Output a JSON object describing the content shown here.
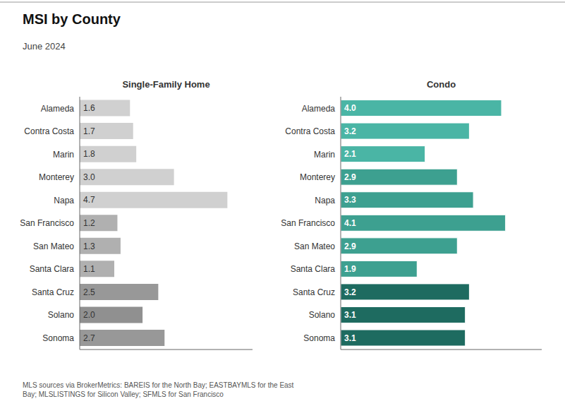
{
  "title": "MSI by County",
  "subtitle": "June 2024",
  "annotations": [
    "MLS sources via BrokerMetrics: BAREIS for the North Bay; EASTBAYMLS for the East\nBay; MLSLISTINGS for Silicon Valley; SFMLS for San Francisco"
  ],
  "chart_data": [
    {
      "type": "bar",
      "title": "Single-Family Home",
      "orientation": "horizontal",
      "categories": [
        "Alameda",
        "Contra Costa",
        "Marin",
        "Monterey",
        "Napa",
        "San Francisco",
        "San Mateo",
        "Santa Clara",
        "Santa Cruz",
        "Solano",
        "Sonoma"
      ],
      "values": [
        1.6,
        1.7,
        1.8,
        3.0,
        4.7,
        1.2,
        1.3,
        1.1,
        2.5,
        2.0,
        2.7
      ],
      "value_labels": [
        "1.6",
        "1.7",
        "1.8",
        "3.0",
        "4.7",
        "1.2",
        "1.3",
        "1.1",
        "2.5",
        "2.0",
        "2.7"
      ],
      "colors": [
        "#d0d0d0",
        "#d0d0d0",
        "#d0d0d0",
        "#d0d0d0",
        "#d0d0d0",
        "#b0b0b0",
        "#b0b0b0",
        "#b0b0b0",
        "#989898",
        "#909090",
        "#989898"
      ],
      "xlim": [
        0,
        5.5
      ],
      "data_labels": true,
      "tick_labels": "y",
      "grid": false
    },
    {
      "type": "bar",
      "title": "Condo",
      "orientation": "horizontal",
      "categories": [
        "Alameda",
        "Contra Costa",
        "Marin",
        "Monterey",
        "Napa",
        "San Francisco",
        "San Mateo",
        "Santa Clara",
        "Santa Cruz",
        "Solano",
        "Sonoma"
      ],
      "values": [
        4.0,
        3.2,
        2.1,
        2.9,
        3.3,
        4.1,
        2.9,
        1.9,
        3.2,
        3.1,
        3.1
      ],
      "value_labels": [
        "4.0",
        "3.2",
        "2.1",
        "2.9",
        "3.3",
        "4.1",
        "2.9",
        "1.9",
        "3.2",
        "3.1",
        "3.1"
      ],
      "colors": [
        "#4ab5a5",
        "#4ab5a5",
        "#4ab5a5",
        "#3da090",
        "#3da090",
        "#3da090",
        "#3da090",
        "#3da090",
        "#1e6b60",
        "#1e6b60",
        "#1e6b60"
      ],
      "xlim": [
        0,
        5.0
      ],
      "data_labels": true,
      "tick_labels": "y",
      "grid": false
    }
  ]
}
